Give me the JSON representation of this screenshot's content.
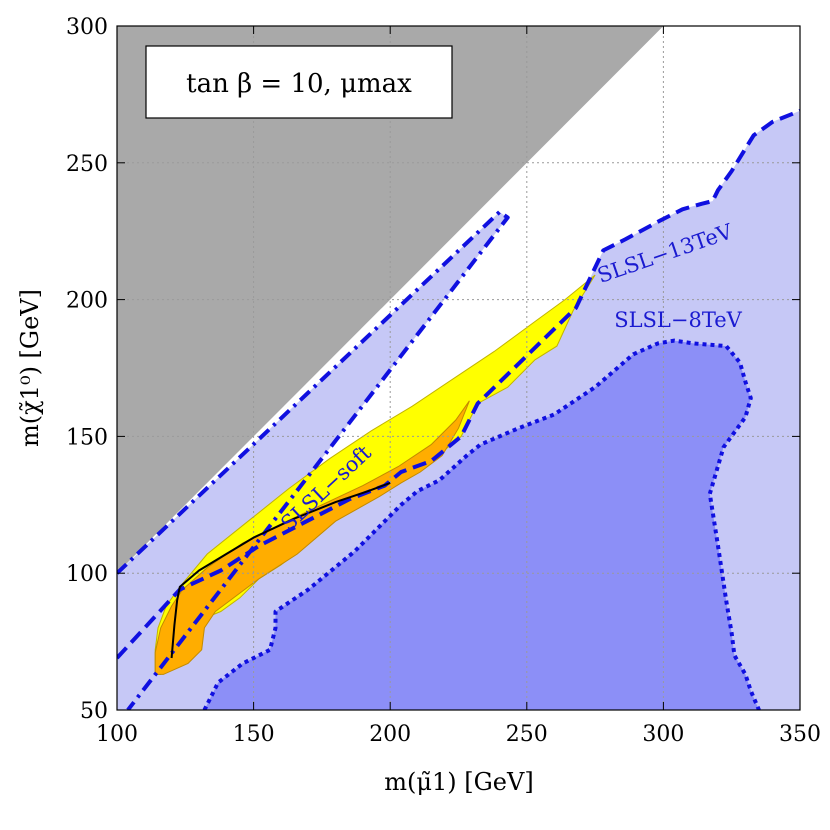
{
  "chart_data": {
    "type": "area",
    "title": "tan β = 10, μmax",
    "xlabel": "m(μ̃1) [GeV]",
    "ylabel": "m(χ̃1⁰) [GeV]",
    "xlim": [
      100,
      350
    ],
    "ylim": [
      50,
      300
    ],
    "x_ticks": [
      100,
      150,
      200,
      250,
      300,
      350
    ],
    "y_ticks": [
      50,
      100,
      150,
      200,
      250,
      300
    ],
    "grid": true,
    "colors": {
      "gray_region": "#a9a9a9",
      "light_blue": "#c6c8f6",
      "mid_blue": "#8c8ff7",
      "yellow": "#ffff00",
      "orange": "#ffad00",
      "boundary": "#1010e0",
      "label_blue": "#1a1ad0"
    },
    "regions": [
      {
        "name": "gray-excluded",
        "fill": "#a9a9a9",
        "points": [
          [
            100,
            100
          ],
          [
            100,
            300
          ],
          [
            300,
            300
          ]
        ]
      },
      {
        "name": "SLSL-13TeV",
        "fill": "#c6c8f6",
        "points": [
          [
            100,
            50
          ],
          [
            100,
            69
          ],
          [
            123,
            94
          ],
          [
            138,
            101
          ],
          [
            152,
            110
          ],
          [
            185,
            127
          ],
          [
            198,
            132
          ],
          [
            204,
            137
          ],
          [
            215,
            141
          ],
          [
            226,
            150
          ],
          [
            232,
            162
          ],
          [
            268,
            197
          ],
          [
            278,
            218
          ],
          [
            286,
            222
          ],
          [
            299,
            229
          ],
          [
            307,
            233
          ],
          [
            314,
            235
          ],
          [
            318,
            236
          ],
          [
            320,
            240
          ],
          [
            325,
            247
          ],
          [
            333,
            260
          ],
          [
            340,
            265
          ],
          [
            350,
            269
          ],
          [
            350,
            50
          ]
        ]
      },
      {
        "name": "SLSL-soft-band",
        "fill": "#c6c8f6",
        "points": [
          [
            100,
            100
          ],
          [
            240,
            232
          ],
          [
            243,
            230
          ],
          [
            104,
            50
          ],
          [
            100,
            50
          ]
        ]
      },
      {
        "name": "SLSL-8TeV",
        "fill": "#8c8ff7",
        "points": [
          [
            132,
            50
          ],
          [
            137,
            60
          ],
          [
            146,
            67
          ],
          [
            156,
            72
          ],
          [
            158,
            80
          ],
          [
            158,
            86
          ],
          [
            170,
            94
          ],
          [
            187,
            108
          ],
          [
            204,
            125
          ],
          [
            210,
            130
          ],
          [
            218,
            134
          ],
          [
            228,
            143
          ],
          [
            233,
            147
          ],
          [
            247,
            153
          ],
          [
            260,
            158
          ],
          [
            275,
            168
          ],
          [
            289,
            180
          ],
          [
            298,
            184
          ],
          [
            304,
            185
          ],
          [
            311,
            184
          ],
          [
            323,
            183
          ],
          [
            328,
            177
          ],
          [
            330,
            170
          ],
          [
            332,
            164
          ],
          [
            330,
            157
          ],
          [
            322,
            146
          ],
          [
            317,
            129
          ],
          [
            320,
            110
          ],
          [
            323,
            90
          ],
          [
            325,
            78
          ],
          [
            326,
            70
          ],
          [
            330,
            63
          ],
          [
            332,
            57
          ],
          [
            335,
            50
          ]
        ]
      },
      {
        "name": "yellow-region",
        "fill": "#ffff00",
        "stroke": "#c2b400",
        "points": [
          [
            114,
            63
          ],
          [
            114,
            72
          ],
          [
            115,
            80
          ],
          [
            118,
            88
          ],
          [
            123,
            95
          ],
          [
            133,
            107
          ],
          [
            148,
            119
          ],
          [
            163,
            131
          ],
          [
            178,
            142
          ],
          [
            193,
            152
          ],
          [
            208,
            161
          ],
          [
            223,
            171
          ],
          [
            238,
            181
          ],
          [
            253,
            192
          ],
          [
            264,
            200
          ],
          [
            275,
            209
          ],
          [
            267,
            196
          ],
          [
            261,
            183
          ],
          [
            253,
            178
          ],
          [
            243,
            168
          ],
          [
            232,
            162
          ],
          [
            226,
            150
          ],
          [
            215,
            141
          ],
          [
            204,
            137
          ],
          [
            198,
            132
          ],
          [
            185,
            127
          ],
          [
            170,
            111
          ],
          [
            160,
            103
          ],
          [
            152,
            98
          ],
          [
            145,
            91
          ],
          [
            138,
            86
          ],
          [
            133,
            84
          ],
          [
            131,
            78
          ],
          [
            120,
            68
          ],
          [
            116,
            63
          ]
        ]
      },
      {
        "name": "orange-region",
        "fill": "#ffad00",
        "stroke": "#c28a00",
        "points": [
          [
            114,
            63
          ],
          [
            114,
            71
          ],
          [
            116,
            80
          ],
          [
            120,
            88
          ],
          [
            124,
            94
          ],
          [
            133,
            102
          ],
          [
            146,
            111
          ],
          [
            160,
            118
          ],
          [
            175,
            125
          ],
          [
            190,
            132
          ],
          [
            203,
            139
          ],
          [
            215,
            147
          ],
          [
            224,
            156
          ],
          [
            229,
            163
          ],
          [
            225,
            153
          ],
          [
            219,
            143
          ],
          [
            211,
            137
          ],
          [
            204,
            133
          ],
          [
            196,
            128
          ],
          [
            180,
            119
          ],
          [
            166,
            107
          ],
          [
            152,
            98
          ],
          [
            144,
            92
          ],
          [
            136,
            86
          ],
          [
            132,
            80
          ],
          [
            131,
            72
          ],
          [
            126,
            67
          ],
          [
            117,
            63
          ]
        ]
      }
    ],
    "curves": [
      {
        "name": "SLSL-13TeV-boundary",
        "style": "dashed",
        "points": [
          [
            100,
            69
          ],
          [
            123,
            94
          ],
          [
            138,
            101
          ],
          [
            152,
            110
          ],
          [
            185,
            127
          ],
          [
            198,
            132
          ],
          [
            204,
            137
          ],
          [
            215,
            141
          ],
          [
            226,
            150
          ],
          [
            232,
            162
          ],
          [
            268,
            197
          ],
          [
            278,
            218
          ],
          [
            286,
            222
          ],
          [
            299,
            229
          ],
          [
            307,
            233
          ],
          [
            314,
            235
          ],
          [
            318,
            236
          ],
          [
            320,
            240
          ],
          [
            325,
            247
          ],
          [
            333,
            260
          ],
          [
            340,
            265
          ],
          [
            350,
            269
          ]
        ]
      },
      {
        "name": "SLSL-8TeV-boundary",
        "style": "dotted",
        "points": [
          [
            132,
            50
          ],
          [
            137,
            60
          ],
          [
            146,
            67
          ],
          [
            156,
            72
          ],
          [
            158,
            80
          ],
          [
            158,
            86
          ],
          [
            170,
            94
          ],
          [
            187,
            108
          ],
          [
            204,
            125
          ],
          [
            210,
            130
          ],
          [
            218,
            134
          ],
          [
            228,
            143
          ],
          [
            233,
            147
          ],
          [
            247,
            153
          ],
          [
            260,
            158
          ],
          [
            275,
            168
          ],
          [
            289,
            180
          ],
          [
            298,
            184
          ],
          [
            304,
            185
          ],
          [
            311,
            184
          ],
          [
            323,
            183
          ],
          [
            328,
            177
          ],
          [
            330,
            170
          ],
          [
            332,
            164
          ],
          [
            330,
            157
          ],
          [
            322,
            146
          ],
          [
            317,
            129
          ],
          [
            320,
            110
          ],
          [
            323,
            90
          ],
          [
            325,
            78
          ],
          [
            326,
            70
          ],
          [
            330,
            63
          ],
          [
            332,
            57
          ],
          [
            335,
            50
          ]
        ]
      },
      {
        "name": "SLSL-soft-boundary",
        "style": "dashdot",
        "points": [
          [
            100,
            100
          ],
          [
            240,
            232
          ],
          [
            243,
            230
          ],
          [
            104,
            50
          ]
        ]
      },
      {
        "name": "black-curve",
        "style": "solid",
        "points": [
          [
            120,
            69
          ],
          [
            121,
            81
          ],
          [
            122,
            90
          ],
          [
            123,
            95
          ],
          [
            130,
            101
          ],
          [
            140,
            107
          ],
          [
            150,
            113
          ],
          [
            165,
            120
          ],
          [
            180,
            126
          ],
          [
            192,
            130
          ],
          [
            200,
            133
          ]
        ]
      }
    ],
    "annotations": [
      {
        "text": "SLSL−soft",
        "x": 163,
        "y": 115,
        "angle": -43
      },
      {
        "text": "SLSL−13TeV",
        "x": 277,
        "y": 206,
        "angle": -19
      },
      {
        "text": "SLSL−8TeV",
        "x": 282,
        "y": 190,
        "angle": 0
      }
    ]
  }
}
